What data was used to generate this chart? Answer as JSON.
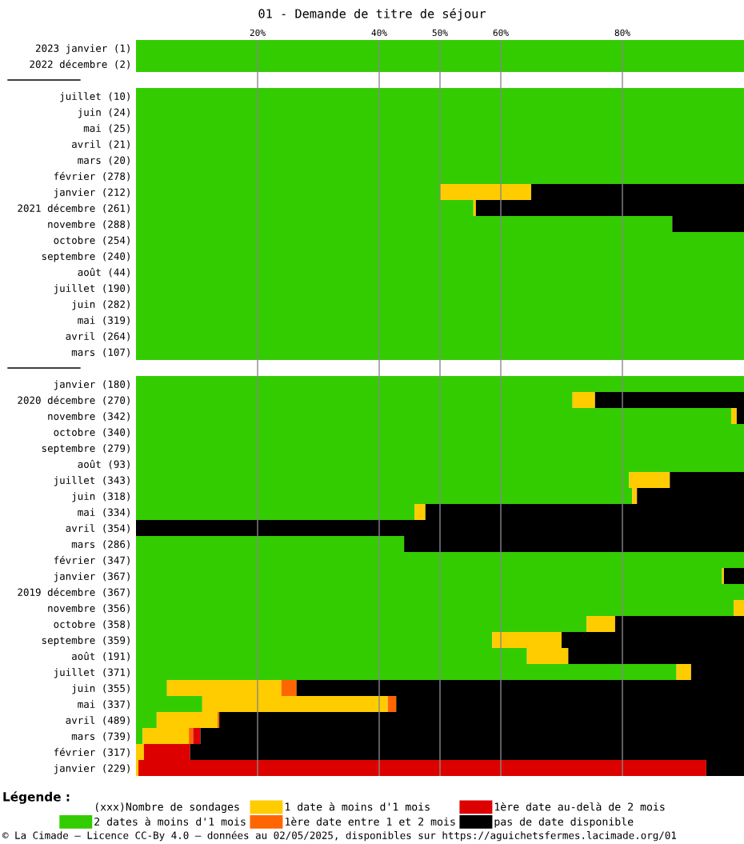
{
  "chart_data": {
    "type": "bar",
    "orientation": "horizontal",
    "stacked": true,
    "title": "01 - Demande de titre de séjour",
    "legend_title": "Légende :",
    "categories": [
      "2023 janvier (1)",
      "2022 décembre (2)",
      null,
      "juillet (10)",
      "juin (24)",
      "mai (25)",
      "avril (21)",
      "mars (20)",
      "février (278)",
      "janvier (212)",
      "2021 décembre (261)",
      "novembre (288)",
      "octobre (254)",
      "septembre (240)",
      "août (44)",
      "juillet (190)",
      "juin (282)",
      "mai (319)",
      "avril (264)",
      "mars (107)",
      null,
      "janvier (180)",
      "2020 décembre (270)",
      "novembre (342)",
      "octobre (340)",
      "septembre (279)",
      "août (93)",
      "juillet (343)",
      "juin (318)",
      "mai (334)",
      "avril (354)",
      "mars (286)",
      "février (347)",
      "janvier (367)",
      "2019 décembre (367)",
      "novembre (356)",
      "octobre (358)",
      "septembre (359)",
      "août (191)",
      "juillet (371)",
      "juin (355)",
      "mai (337)",
      "avril (489)",
      "mars (739)",
      "février (317)",
      "janvier (229)"
    ],
    "series": [
      {
        "name": "2 dates à moins d'1 mois",
        "color": "#33cc00",
        "values": [
          100,
          100,
          null,
          100,
          100,
          100,
          100,
          100,
          100,
          50,
          55.5,
          88.2,
          100,
          100,
          100,
          100,
          100,
          100,
          100,
          100,
          null,
          100,
          71.8,
          97.9,
          100,
          100,
          100,
          81.1,
          81.6,
          45.8,
          0,
          44.1,
          100,
          96.4,
          100,
          98.3,
          74.1,
          58.6,
          64.3,
          88.9,
          5.1,
          10.9,
          3.4,
          1.1,
          0,
          0
        ]
      },
      {
        "name": "1 date à moins d'1 mois",
        "color": "#ffcc00",
        "values": [
          0,
          0,
          null,
          0,
          0,
          0,
          0,
          0,
          0,
          15,
          0.4,
          0,
          0,
          0,
          0,
          0,
          0,
          0,
          0,
          0,
          null,
          0,
          3.7,
          0.9,
          0,
          0,
          0,
          6.7,
          0.8,
          1.8,
          0,
          0,
          0,
          0.3,
          0,
          1.7,
          4.7,
          11.4,
          6.8,
          2.4,
          18.8,
          30.5,
          10,
          7.6,
          1.3,
          0.4
        ]
      },
      {
        "name": "1ère date entre 1 et 2 mois",
        "color": "#ff6600",
        "values": [
          0,
          0,
          null,
          0,
          0,
          0,
          0,
          0,
          0,
          0,
          0,
          0,
          0,
          0,
          0,
          0,
          0,
          0,
          0,
          0,
          null,
          0,
          0,
          0,
          0,
          0,
          0,
          0,
          0,
          0,
          0,
          0,
          0,
          0,
          0,
          0,
          0,
          0,
          0,
          0,
          2.5,
          1.4,
          0.3,
          0.7,
          0,
          0
        ]
      },
      {
        "name": "1ère date au-delà de 2 mois",
        "color": "#dd0000",
        "values": [
          0,
          0,
          null,
          0,
          0,
          0,
          0,
          0,
          0,
          0,
          0,
          0,
          0,
          0,
          0,
          0,
          0,
          0,
          0,
          0,
          null,
          0,
          0,
          0,
          0,
          0,
          0,
          0,
          0,
          0,
          0,
          0,
          0,
          0,
          0,
          0,
          0,
          0,
          0,
          0,
          0,
          0,
          0,
          1.2,
          7.6,
          93.4
        ]
      },
      {
        "name": "pas de date disponible",
        "color": "#000000",
        "values": [
          0,
          0,
          null,
          0,
          0,
          0,
          0,
          0,
          0,
          35,
          44.1,
          11.8,
          0,
          0,
          0,
          0,
          0,
          0,
          0,
          0,
          null,
          0,
          24.5,
          1.2,
          0,
          0,
          0,
          12.2,
          17.6,
          52.4,
          100,
          55.9,
          0,
          3.3,
          0,
          0,
          21.2,
          30,
          28.9,
          8.7,
          73.6,
          57.2,
          86.3,
          89.4,
          91.1,
          6.2
        ]
      }
    ],
    "xlim": [
      0,
      100
    ],
    "xticks": [
      {
        "value": 20,
        "label": "20%"
      },
      {
        "value": 40,
        "label": "40%"
      },
      {
        "value": 50,
        "label": "50%"
      },
      {
        "value": 60,
        "label": "60%"
      },
      {
        "value": 80,
        "label": "80%"
      }
    ],
    "grid": "x",
    "legend": "bottom",
    "annotations": [
      "(xxx)Nombre de sondages",
      "© La Cimade — Licence CC-By 4.0 — données au 02/05/2025, disponibles sur https://aguichetsfermes.lacimade.org/01"
    ]
  }
}
